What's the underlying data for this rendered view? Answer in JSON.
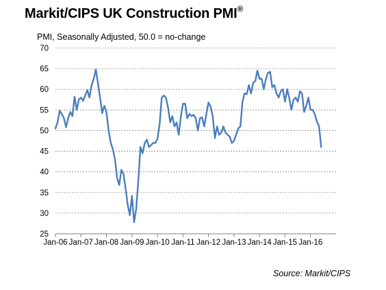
{
  "chart_data": {
    "type": "line",
    "title": "Markit/CIPS UK Construction PMI",
    "title_mark": "®",
    "subtitle": "PMI, Seasonally Adjusted, 50.0 = no-change",
    "source": "Source: Markit/CIPS",
    "ylim": [
      25,
      70
    ],
    "yticks": [
      "70",
      "65",
      "60",
      "55",
      "50",
      "45",
      "40",
      "35",
      "30",
      "25"
    ],
    "xticks": [
      "Jan-06",
      "Jan-07",
      "Jan-08",
      "Jan-09",
      "Jan-10",
      "Jan-11",
      "Jan-12",
      "Jan-13",
      "Jan-14",
      "Jan-15",
      "Jan-16"
    ],
    "grid": "horizontal dashed",
    "line_color": "#4a7ebb",
    "series": [
      {
        "values": [
          50.5,
          52.0,
          54.8,
          54.0,
          53.0,
          50.8,
          53.0,
          54.5,
          53.5,
          58.2,
          55.0,
          57.5,
          58.0,
          57.2,
          58.5,
          59.8,
          58.0,
          61.0,
          62.5,
          64.8,
          61.5,
          58.0,
          54.2,
          56.0,
          54.5,
          50.0,
          47.0,
          45.5,
          43.0,
          38.5,
          36.8,
          40.5,
          39.5,
          36.0,
          32.0,
          29.5,
          34.2,
          27.8,
          31.0,
          38.0,
          46.0,
          44.5,
          47.0,
          47.8,
          46.0,
          46.5,
          47.0,
          47.0,
          48.0,
          51.5,
          58.0,
          58.5,
          58.0,
          55.5,
          52.0,
          53.5,
          51.0,
          52.0,
          49.0,
          53.5,
          56.5,
          56.5,
          53.0,
          54.0,
          53.5,
          53.8,
          53.0,
          50.0,
          53.0,
          53.2,
          51.0,
          54.0,
          56.8,
          55.8,
          53.5,
          48.2,
          51.0,
          49.0,
          49.5,
          51.0,
          49.5,
          49.0,
          48.5,
          47.0,
          47.5,
          49.0,
          50.5,
          51.0,
          57.0,
          59.0,
          58.8,
          61.0,
          59.0,
          61.5,
          62.0,
          64.5,
          62.5,
          62.6,
          60.0,
          62.5,
          64.0,
          64.2,
          60.5,
          61.0,
          59.0,
          58.0,
          59.5,
          60.0,
          57.0,
          60.0,
          57.8,
          55.0,
          57.5,
          58.0,
          57.0,
          59.5,
          59.0,
          54.5,
          56.0,
          58.0,
          55.0,
          55.0,
          54.0,
          52.2,
          51.0,
          46.0
        ]
      }
    ]
  }
}
